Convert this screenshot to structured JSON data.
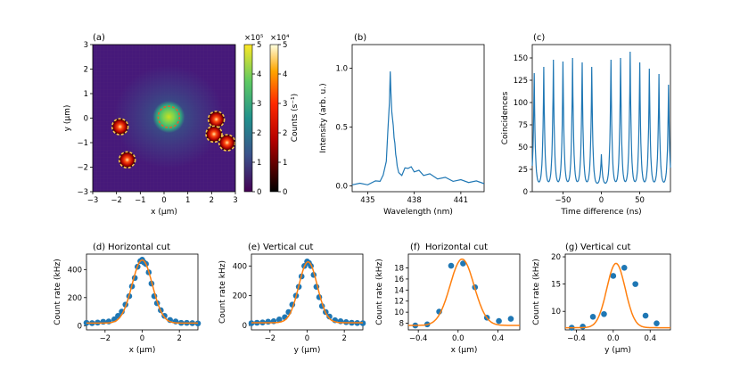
{
  "colors": {
    "series": "#1f77b4",
    "fit": "#ff7f0e",
    "dashed": "#e06030"
  },
  "chart_data": [
    {
      "panel": "a",
      "label": "(a)",
      "type": "heatmap",
      "xlabel": "x (μm)",
      "ylabel": "y (μm)",
      "xlim": [
        -3,
        3
      ],
      "ylim": [
        -3,
        3
      ],
      "xticks": [
        "−3",
        "−2",
        "−1",
        "0",
        "1",
        "2",
        "3"
      ],
      "yticks": [
        "−3",
        "−2",
        "−1",
        "0",
        "1",
        "2",
        "3"
      ],
      "map": "counts, viridis bright spot plus several red circled emitters",
      "spots": [
        {
          "x": 0.2,
          "y": 0.05,
          "kind": "bright"
        },
        {
          "x": -1.85,
          "y": -0.35,
          "kind": "red"
        },
        {
          "x": -1.55,
          "y": -1.7,
          "kind": "red"
        },
        {
          "x": 2.2,
          "y": -0.05,
          "kind": "red"
        },
        {
          "x": 2.1,
          "y": -0.65,
          "kind": "red"
        },
        {
          "x": 2.65,
          "y": -1.0,
          "kind": "red"
        }
      ],
      "colorbar1": {
        "exponent": "×10⁵",
        "ticks": [
          "0",
          "1",
          "2",
          "3",
          "4",
          "5"
        ],
        "range": [
          0,
          5
        ]
      },
      "colorbar2": {
        "exponent": "×10⁴",
        "ticks": [
          "0",
          "1",
          "2",
          "3",
          "4",
          "5"
        ],
        "range": [
          0,
          5
        ],
        "label": "Counts (s⁻¹)"
      }
    },
    {
      "panel": "b",
      "label": "(b)",
      "type": "line",
      "xlabel": "Wavelength (nm)",
      "ylabel": "Intensity (arb. u.)",
      "xlim": [
        434,
        442.5
      ],
      "ylim": [
        -0.05,
        1.2
      ],
      "xticks": [
        435,
        438,
        441
      ],
      "yticks": [
        0.0,
        0.5,
        1.0
      ],
      "ytick_labels": [
        "0.0",
        "0.5",
        "1.0"
      ],
      "x": [
        434.0,
        434.5,
        435.0,
        435.5,
        435.8,
        436.0,
        436.2,
        436.3,
        436.4,
        436.45,
        436.5,
        436.55,
        436.6,
        436.65,
        436.7,
        436.75,
        436.8,
        436.85,
        436.9,
        437.0,
        437.2,
        437.4,
        437.6,
        437.8,
        438.0,
        438.3,
        438.6,
        439.0,
        439.5,
        440.0,
        440.5,
        441.0,
        441.5,
        442.0,
        442.5
      ],
      "values": [
        0.02,
        0.01,
        0.02,
        0.03,
        0.05,
        0.08,
        0.22,
        0.45,
        0.72,
        0.96,
        0.8,
        0.62,
        0.58,
        0.5,
        0.42,
        0.35,
        0.28,
        0.22,
        0.18,
        0.1,
        0.1,
        0.14,
        0.16,
        0.15,
        0.13,
        0.12,
        0.1,
        0.09,
        0.07,
        0.06,
        0.05,
        0.04,
        0.04,
        0.03,
        0.03
      ]
    },
    {
      "panel": "c",
      "label": "(c)",
      "type": "line",
      "xlabel": "Time difference (ns)",
      "ylabel": "Coincidences",
      "xlim": [
        -90,
        90
      ],
      "ylim": [
        0,
        165
      ],
      "xticks": [
        -50,
        0,
        50
      ],
      "xtick_labels": [
        "−50",
        "0",
        "50"
      ],
      "yticks": [
        0,
        25,
        50,
        75,
        100,
        125,
        150
      ],
      "period_ns": 12.5,
      "peak_centers": [
        -87.5,
        -75,
        -62.5,
        -50,
        -37.5,
        -25,
        -12.5,
        0,
        12.5,
        25,
        37.5,
        50,
        62.5,
        75,
        87.5
      ],
      "peak_heights": [
        133,
        140,
        148,
        146,
        150,
        145,
        140,
        42,
        148,
        150,
        157,
        145,
        138,
        132,
        120
      ],
      "baseline": 8
    },
    {
      "panel": "d",
      "label": "(d)",
      "title": "Horizontal cut",
      "type": "scatter",
      "xlabel": "x (μm)",
      "ylabel": "Count rate (kHz)",
      "xlim": [
        -3,
        3
      ],
      "ylim": [
        -30,
        510
      ],
      "xticks": [
        -2,
        0,
        2
      ],
      "xtick_labels": [
        "−2",
        "0",
        "2"
      ],
      "yticks": [
        0,
        200,
        400
      ],
      "points_x": [
        -3.0,
        -2.7,
        -2.4,
        -2.1,
        -1.8,
        -1.5,
        -1.3,
        -1.1,
        -0.9,
        -0.7,
        -0.55,
        -0.4,
        -0.25,
        -0.1,
        0.0,
        0.1,
        0.2,
        0.35,
        0.5,
        0.65,
        0.8,
        1.0,
        1.2,
        1.5,
        1.8,
        2.1,
        2.4,
        2.7,
        3.0
      ],
      "points_y": [
        20,
        18,
        22,
        28,
        30,
        45,
        70,
        100,
        150,
        210,
        280,
        340,
        420,
        460,
        470,
        450,
        440,
        380,
        300,
        210,
        160,
        110,
        70,
        40,
        30,
        20,
        20,
        18,
        16
      ],
      "fit": {
        "amplitude": 450,
        "center": 0.0,
        "sigma": 0.55,
        "offset": 18
      }
    },
    {
      "panel": "e",
      "label": "(e)",
      "title": "Vertical cut",
      "type": "scatter",
      "xlabel": "y (μm)",
      "ylabel": "Count rate kHz)",
      "xlim": [
        -3,
        3
      ],
      "ylim": [
        -30,
        480
      ],
      "xticks": [
        -2,
        0,
        2
      ],
      "xtick_labels": [
        "−2",
        "0",
        "2"
      ],
      "yticks": [
        0,
        200,
        400
      ],
      "points_x": [
        -3.0,
        -2.7,
        -2.4,
        -2.1,
        -1.8,
        -1.5,
        -1.2,
        -1.0,
        -0.8,
        -0.6,
        -0.45,
        -0.3,
        -0.15,
        0.0,
        0.1,
        0.2,
        0.35,
        0.5,
        0.65,
        0.8,
        1.0,
        1.2,
        1.5,
        1.8,
        2.1,
        2.4,
        2.7,
        3.0
      ],
      "points_y": [
        15,
        18,
        20,
        25,
        28,
        40,
        55,
        90,
        140,
        200,
        260,
        330,
        400,
        430,
        420,
        400,
        340,
        260,
        190,
        130,
        90,
        60,
        35,
        28,
        22,
        18,
        16,
        15
      ],
      "fit": {
        "amplitude": 410,
        "center": 0.05,
        "sigma": 0.5,
        "offset": 18
      }
    },
    {
      "panel": "f",
      "label": "(f)",
      "title": "Horizontal cut",
      "type": "scatter",
      "xlabel": "x (μm)",
      "ylabel": "Count rate (kHz)",
      "xlim": [
        -0.5,
        0.62
      ],
      "ylim": [
        6.8,
        20.5
      ],
      "xticks": [
        -0.4,
        0.0,
        0.4
      ],
      "xtick_labels": [
        "−0.4",
        "0.0",
        "0.4"
      ],
      "yticks": [
        8,
        10,
        12,
        14,
        16,
        18
      ],
      "ytick_labels": [
        "8",
        "10",
        "12",
        "14",
        "16",
        "18"
      ],
      "points_x": [
        -0.43,
        -0.31,
        -0.19,
        -0.07,
        0.05,
        0.17,
        0.29,
        0.41,
        0.53
      ],
      "points_y": [
        7.6,
        7.8,
        10.1,
        18.4,
        18.8,
        14.5,
        9.0,
        8.4,
        8.8
      ],
      "fit": {
        "amplitude": 12.0,
        "center": 0.04,
        "sigma": 0.12,
        "offset": 7.6
      }
    },
    {
      "panel": "g",
      "label": "(g)",
      "title": "Vertical cut",
      "type": "scatter",
      "xlabel": "y (μm)",
      "ylabel": "Count rate (kHz)",
      "xlim": [
        -0.52,
        0.62
      ],
      "ylim": [
        6.6,
        20.5
      ],
      "xticks": [
        -0.4,
        0.0,
        0.4
      ],
      "xtick_labels": [
        "−0.4",
        "0.0",
        "0.4"
      ],
      "yticks": [
        10,
        15,
        20
      ],
      "ytick_labels": [
        "10",
        "15",
        "20"
      ],
      "points_x": [
        -0.45,
        -0.33,
        -0.22,
        -0.1,
        0.0,
        0.12,
        0.24,
        0.35,
        0.47
      ],
      "points_y": [
        7.0,
        7.2,
        9.0,
        9.5,
        16.5,
        18.0,
        15.0,
        9.2,
        7.8
      ],
      "fit": {
        "amplitude": 11.8,
        "center": 0.03,
        "sigma": 0.1,
        "offset": 7.0
      }
    }
  ]
}
